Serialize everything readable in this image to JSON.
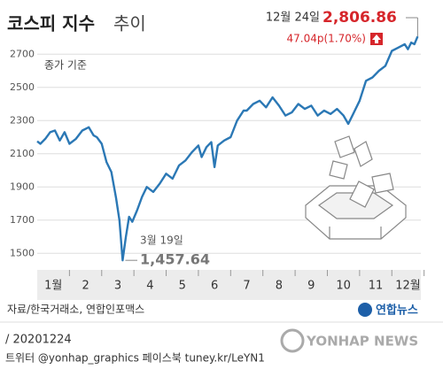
{
  "chart_data": {
    "type": "line",
    "title": "코스피 지수",
    "title_suffix": "추이",
    "subtitle": "종가 기준",
    "color": "#2b78b5",
    "x": [
      0.5,
      0.6,
      0.75,
      0.9,
      1.05,
      1.2,
      1.35,
      1.5,
      1.7,
      1.9,
      2.1,
      2.25,
      2.35,
      2.5,
      2.65,
      2.8,
      2.95,
      3.05,
      3.15,
      3.25,
      3.35,
      3.45,
      3.6,
      3.75,
      3.9,
      4.1,
      4.3,
      4.5,
      4.7,
      4.9,
      5.1,
      5.3,
      5.5,
      5.6,
      5.75,
      5.9,
      6.0,
      6.1,
      6.3,
      6.5,
      6.7,
      6.9,
      7.0,
      7.2,
      7.4,
      7.6,
      7.8,
      8.0,
      8.2,
      8.4,
      8.6,
      8.8,
      9.0,
      9.2,
      9.4,
      9.6,
      9.8,
      10.0,
      10.15,
      10.3,
      10.5,
      10.7,
      10.9,
      11.1,
      11.3,
      11.5,
      11.7,
      11.9,
      12.0,
      12.1,
      12.2,
      12.3
    ],
    "values": [
      2175,
      2160,
      2190,
      2230,
      2240,
      2180,
      2230,
      2160,
      2190,
      2240,
      2260,
      2210,
      2200,
      2160,
      2050,
      1990,
      1830,
      1700,
      1457.64,
      1600,
      1720,
      1690,
      1760,
      1840,
      1900,
      1870,
      1920,
      1980,
      1950,
      2030,
      2060,
      2110,
      2150,
      2080,
      2140,
      2170,
      2020,
      2150,
      2180,
      2200,
      2300,
      2360,
      2360,
      2400,
      2420,
      2380,
      2440,
      2390,
      2330,
      2350,
      2400,
      2370,
      2390,
      2330,
      2360,
      2340,
      2370,
      2330,
      2280,
      2340,
      2420,
      2540,
      2560,
      2600,
      2630,
      2720,
      2740,
      2760,
      2730,
      2770,
      2760,
      2806.86
    ],
    "xlim": [
      0.5,
      12.4
    ],
    "xticks": [
      {
        "value": 1,
        "label": "1월"
      },
      2,
      3,
      4,
      5,
      6,
      7,
      8,
      9,
      10,
      11,
      {
        "value": 12,
        "label": "12월"
      }
    ],
    "ylim": [
      1400,
      2840
    ],
    "yticks": [
      1500,
      1700,
      1900,
      2100,
      2300,
      2500,
      2700
    ],
    "grid": true,
    "annotations": {
      "last_date": "12월 24일",
      "last_value": "2,806.86",
      "last_change": "47.04p(1.70%)",
      "low_date": "3월 19일",
      "low_value": "1,457.64"
    },
    "source": "자료/한국거래소, 연합인포맥스"
  },
  "footer": {
    "date": "/ 20201224",
    "social": "트위터 @yonhap_graphics  페이스북 tuney.kr/LeYN1",
    "logo_ko": "연합뉴스",
    "logo_en": "YONHAP NEWS"
  }
}
